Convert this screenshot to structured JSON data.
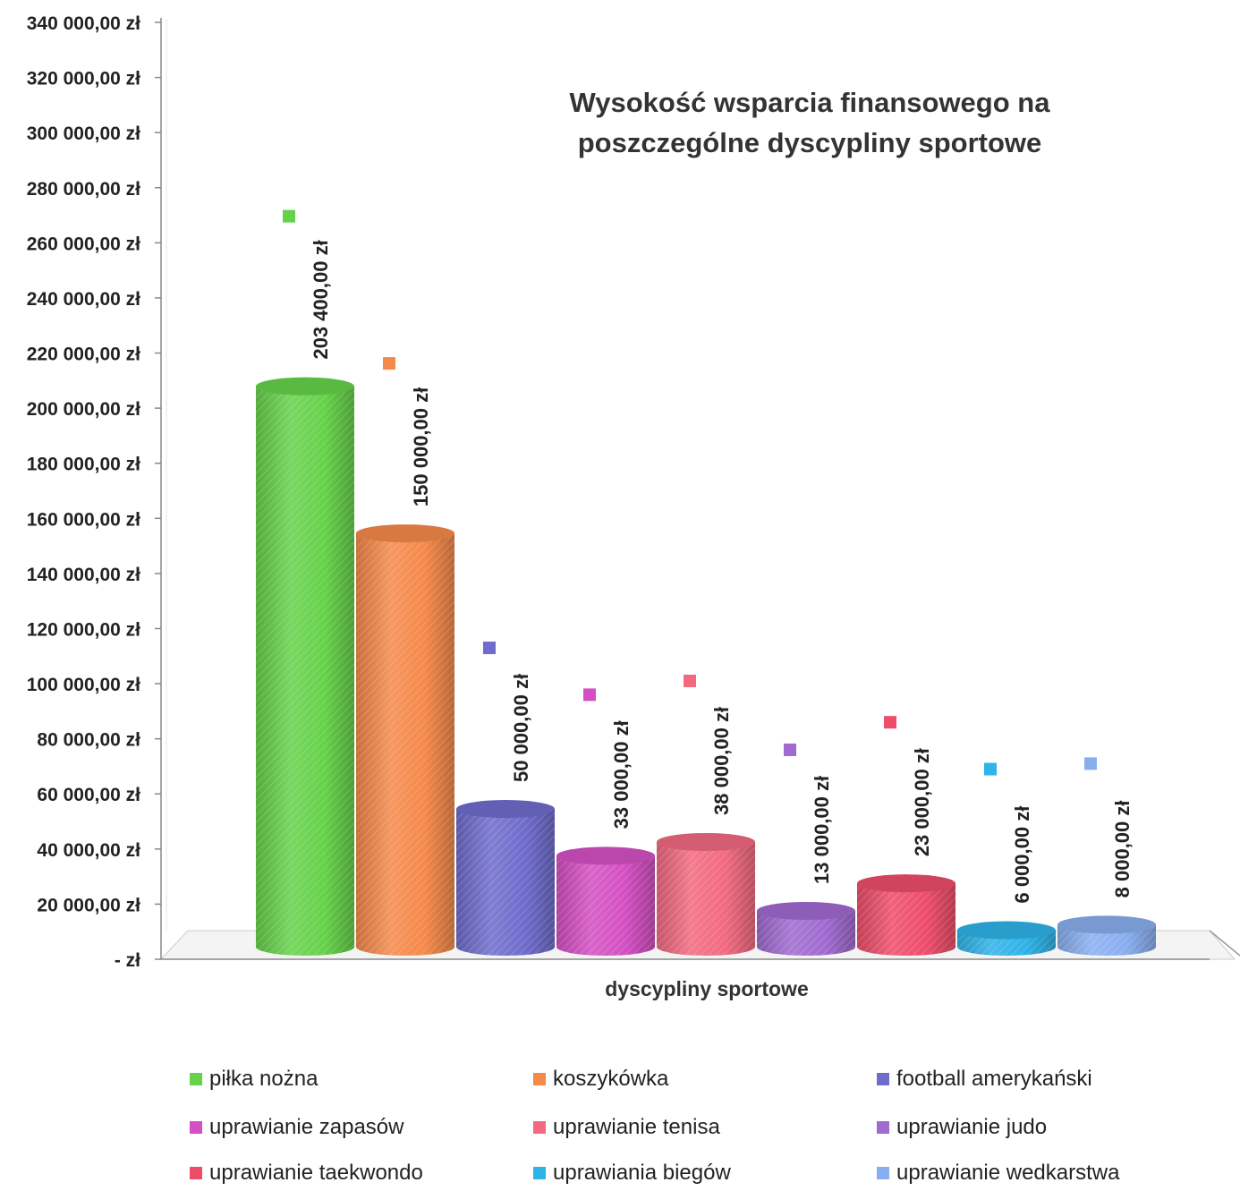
{
  "chart_data": {
    "type": "bar",
    "title_line1": "Wysokość wsparcia finansowego na",
    "title_line2": "poszczególne dyscypliny sportowe",
    "xlabel": "dyscypliny sportowe",
    "ylabel": "",
    "ylim": [
      0,
      340000
    ],
    "y_ticks": [
      "- zł",
      "20 000,00 zł",
      "40 000,00 zł",
      "60 000,00 zł",
      "80 000,00 zł",
      "100 000,00 zł",
      "120 000,00 zł",
      "140 000,00 zł",
      "160 000,00 zł",
      "180 000,00 zł",
      "200 000,00 zł",
      "220 000,00 zł",
      "240 000,00 zł",
      "260 000,00 zł",
      "280 000,00 zł",
      "300 000,00 zł",
      "320 000,00 zł",
      "340 000,00 zł"
    ],
    "categories": [
      "piłka nożna",
      "koszykówka",
      "football amerykański",
      "uprawianie zapasów",
      "uprawianie tenisa",
      "uprawianie judo",
      "uprawianie taekwondo",
      "uprawiania biegów",
      "uprawianie wedkarstwa"
    ],
    "values": [
      203400,
      150000,
      50000,
      33000,
      38000,
      13000,
      23000,
      6000,
      8000
    ],
    "data_labels": [
      "203 400,00 zł",
      "150 000,00 zł",
      "50 000,00 zł",
      "33 000,00 zł",
      "38 000,00 zł",
      "13 000,00 zł",
      "23 000,00 zł",
      "6 000,00 zł",
      "8 000,00 zł"
    ],
    "colors": [
      "#66d24a",
      "#f5894a",
      "#6f6ccc",
      "#d44fc3",
      "#f26a80",
      "#a06ad0",
      "#ee4d6a",
      "#2fb3e8",
      "#89aef0"
    ],
    "legend_position": "bottom",
    "grid": false
  }
}
